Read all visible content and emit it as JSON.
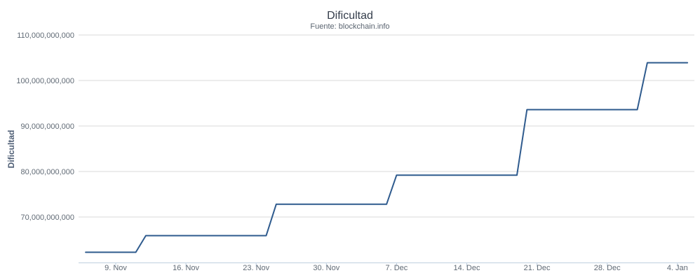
{
  "chart_data": {
    "type": "line",
    "title": "Dificultad",
    "subtitle": "Fuente: blockchain.info",
    "xlabel": "",
    "ylabel": "Dificultad",
    "x_type": "date",
    "x_ticks": [
      "9. Nov",
      "16. Nov",
      "23. Nov",
      "30. Nov",
      "7. Dec",
      "14. Dec",
      "21. Dec",
      "28. Dec",
      "4. Jan"
    ],
    "y_ticks": [
      "70,000,000,000",
      "80,000,000,000",
      "90,000,000,000",
      "100,000,000,000",
      "110,000,000,000"
    ],
    "ylim": [
      60000000000,
      110000000000
    ],
    "grid": true,
    "legend": "none",
    "line_color": "#2f5b8e",
    "series": [
      {
        "x": [
          "6. Nov",
          "7. Nov",
          "8. Nov",
          "9. Nov",
          "10. Nov",
          "11. Nov",
          "12. Nov",
          "13. Nov",
          "14. Nov",
          "15. Nov",
          "16. Nov",
          "17. Nov",
          "18. Nov",
          "19. Nov",
          "20. Nov",
          "21. Nov",
          "22. Nov",
          "23. Nov",
          "24. Nov",
          "25. Nov",
          "26. Nov",
          "27. Nov",
          "28. Nov",
          "29. Nov",
          "30. Nov",
          "1. Dec",
          "2. Dec",
          "3. Dec",
          "4. Dec",
          "5. Dec",
          "6. Dec",
          "7. Dec",
          "8. Dec",
          "9. Dec",
          "10. Dec",
          "11. Dec",
          "12. Dec",
          "13. Dec",
          "14. Dec",
          "15. Dec",
          "16. Dec",
          "17. Dec",
          "18. Dec",
          "19. Dec",
          "20. Dec",
          "21. Dec",
          "22. Dec",
          "23. Dec",
          "24. Dec",
          "25. Dec",
          "26. Dec",
          "27. Dec",
          "28. Dec",
          "29. Dec",
          "30. Dec",
          "31. Dec",
          "1. Jan",
          "2. Jan",
          "3. Jan",
          "4. Jan",
          "5. Jan"
        ],
        "values": [
          62250000000,
          62250000000,
          62250000000,
          62250000000,
          62250000000,
          62250000000,
          65900000000,
          65900000000,
          65900000000,
          65900000000,
          65900000000,
          65900000000,
          65900000000,
          65900000000,
          65900000000,
          65900000000,
          65900000000,
          65900000000,
          65900000000,
          72800000000,
          72800000000,
          72800000000,
          72800000000,
          72800000000,
          72800000000,
          72800000000,
          72800000000,
          72800000000,
          72800000000,
          72800000000,
          72800000000,
          79200000000,
          79200000000,
          79200000000,
          79200000000,
          79200000000,
          79200000000,
          79200000000,
          79200000000,
          79200000000,
          79200000000,
          79200000000,
          79200000000,
          79200000000,
          93600000000,
          93600000000,
          93600000000,
          93600000000,
          93600000000,
          93600000000,
          93600000000,
          93600000000,
          93600000000,
          93600000000,
          93600000000,
          93600000000,
          103900000000,
          103900000000,
          103900000000,
          103900000000,
          103900000000
        ]
      }
    ]
  }
}
